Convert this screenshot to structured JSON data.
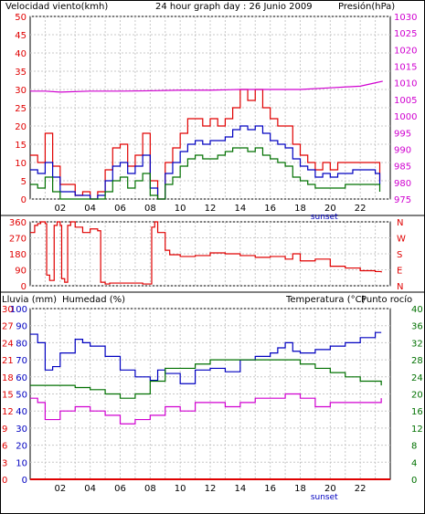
{
  "colors": {
    "red": "#e00000",
    "blue": "#0000c0",
    "green": "#007000",
    "magenta": "#d000d0",
    "grid": "#c8c8c8",
    "frame": "#000000"
  },
  "header": {
    "left": "Velocidad viento(kmh)",
    "center": "24 hour graph day : 26 Junio 2009",
    "right": "Presión(hPa)"
  },
  "bottom_header": {
    "rain": "Lluvia (mm)",
    "humidity": "Humedad (%)",
    "temperature": "Temperatura (°C)",
    "dewpoint": "Punto rocío"
  },
  "x_ticks": [
    "02",
    "04",
    "06",
    "08",
    "10",
    "12",
    "14",
    "16",
    "18",
    "20",
    "22"
  ],
  "sunset_label": "sunset",
  "chart_data": [
    {
      "type": "line",
      "id": "wind_pressure",
      "xlim": [
        0,
        24
      ],
      "left_axis": {
        "label": "Velocidad viento(kmh)",
        "ylim": [
          0,
          50
        ],
        "ticks": [
          0,
          5,
          10,
          15,
          20,
          25,
          30,
          35,
          40,
          45,
          50
        ]
      },
      "right_axis": {
        "label": "Presión(hPa)",
        "ylim": [
          975,
          1030
        ],
        "ticks": [
          975,
          980,
          985,
          990,
          995,
          1000,
          1005,
          1010,
          1015,
          1020,
          1025,
          1030
        ]
      },
      "series": [
        {
          "name": "wind_gust",
          "axis": "left",
          "x": [
            0,
            0.5,
            1,
            1.5,
            2,
            2.5,
            3,
            3.5,
            4,
            4.5,
            5,
            5.5,
            6,
            6.5,
            7,
            7.5,
            8,
            8.5,
            9,
            9.5,
            10,
            10.5,
            11,
            11.5,
            12,
            12.5,
            13,
            13.5,
            14,
            14.5,
            15,
            15.5,
            16,
            16.5,
            17,
            17.5,
            18,
            18.5,
            19,
            19.5,
            20,
            20.5,
            21,
            21.5,
            22,
            22.5,
            23,
            23.3
          ],
          "values": [
            12,
            10,
            18,
            9,
            4,
            4,
            1,
            2,
            0,
            2,
            8,
            14,
            15,
            9,
            12,
            18,
            5,
            0,
            10,
            14,
            18,
            22,
            22,
            20,
            22,
            20,
            22,
            25,
            30,
            27,
            30,
            25,
            22,
            20,
            20,
            15,
            12,
            10,
            8,
            10,
            8,
            10,
            10,
            10,
            10,
            10,
            10,
            5
          ]
        },
        {
          "name": "wind_avg",
          "axis": "left",
          "x": [
            0,
            0.5,
            1,
            1.5,
            2,
            2.5,
            3,
            3.5,
            4,
            4.5,
            5,
            5.5,
            6,
            6.5,
            7,
            7.5,
            8,
            8.5,
            9,
            9.5,
            10,
            10.5,
            11,
            11.5,
            12,
            12.5,
            13,
            13.5,
            14,
            14.5,
            15,
            15.5,
            16,
            16.5,
            17,
            17.5,
            18,
            18.5,
            19,
            19.5,
            20,
            20.5,
            21,
            21.5,
            22,
            22.5,
            23,
            23.3
          ],
          "values": [
            8,
            7,
            10,
            6,
            2,
            2,
            1,
            1,
            0,
            1,
            5,
            9,
            10,
            7,
            9,
            12,
            3,
            0,
            7,
            10,
            13,
            15,
            16,
            15,
            16,
            16,
            17,
            19,
            20,
            19,
            20,
            18,
            16,
            15,
            14,
            11,
            9,
            8,
            6,
            7,
            6,
            7,
            7,
            8,
            8,
            8,
            7,
            4
          ]
        },
        {
          "name": "wind_direction_low",
          "axis": "left",
          "x": [
            0,
            0.5,
            1,
            1.5,
            2,
            2.5,
            3,
            3.5,
            4,
            4.5,
            5,
            5.5,
            6,
            6.5,
            7,
            7.5,
            8,
            8.5,
            9,
            9.5,
            10,
            10.5,
            11,
            11.5,
            12,
            12.5,
            13,
            13.5,
            14,
            14.5,
            15,
            15.5,
            16,
            16.5,
            17,
            17.5,
            18,
            18.5,
            19,
            19.5,
            20,
            20.5,
            21,
            21.5,
            22,
            22.5,
            23,
            23.3
          ],
          "values": [
            4,
            3,
            6,
            2,
            0,
            0,
            0,
            0,
            0,
            0,
            2,
            5,
            6,
            3,
            5,
            7,
            1,
            0,
            4,
            6,
            9,
            11,
            12,
            11,
            11,
            12,
            13,
            14,
            14,
            13,
            14,
            12,
            11,
            10,
            9,
            6,
            5,
            4,
            3,
            3,
            3,
            3,
            4,
            4,
            4,
            4,
            4,
            2
          ]
        },
        {
          "name": "pressure",
          "axis": "right",
          "x": [
            0,
            1,
            2,
            4,
            6,
            8,
            10,
            12,
            14,
            16,
            18,
            20,
            22,
            23,
            23.5
          ],
          "values": [
            1007.5,
            1007.5,
            1007.2,
            1007.5,
            1007.5,
            1007.6,
            1007.8,
            1007.8,
            1008,
            1008,
            1008,
            1008.5,
            1009,
            1010,
            1010.5
          ]
        }
      ],
      "annotation": "sunset"
    },
    {
      "type": "line",
      "id": "wind_direction",
      "xlim": [
        0,
        24
      ],
      "left_axis": {
        "ylim": [
          0,
          360
        ],
        "ticks": [
          0,
          90,
          180,
          270,
          360
        ]
      },
      "right_axis_labels": [
        "N",
        "W",
        "S",
        "E",
        "N"
      ],
      "series": [
        {
          "name": "direction",
          "axis": "left",
          "x": [
            0,
            0.3,
            0.5,
            0.7,
            1,
            1.1,
            1.3,
            1.6,
            1.8,
            2,
            2.1,
            2.3,
            2.5,
            2.7,
            3,
            3.5,
            4,
            4.5,
            4.7,
            5,
            5.3,
            6,
            7,
            7.5,
            8,
            8.1,
            8.3,
            8.5,
            9,
            9.3,
            10,
            11,
            12,
            13,
            14,
            15,
            16,
            17,
            17.5,
            18,
            19,
            20,
            21,
            22,
            23,
            23.4
          ],
          "values": [
            300,
            340,
            350,
            360,
            350,
            60,
            30,
            340,
            360,
            340,
            40,
            20,
            340,
            360,
            330,
            300,
            320,
            310,
            20,
            10,
            15,
            15,
            15,
            10,
            10,
            330,
            360,
            300,
            200,
            175,
            165,
            170,
            185,
            180,
            170,
            160,
            165,
            150,
            180,
            140,
            150,
            110,
            100,
            85,
            80,
            75
          ]
        }
      ]
    },
    {
      "type": "line",
      "id": "rain_humidity_temperature",
      "xlim": [
        0,
        24
      ],
      "axes": {
        "rain": {
          "label": "Lluvia (mm)",
          "ylim": [
            0,
            30
          ],
          "ticks": [
            0,
            3,
            6,
            9,
            12,
            15,
            18,
            21,
            24,
            27,
            30
          ]
        },
        "humidity": {
          "label": "Humedad (%)",
          "ylim": [
            0,
            100
          ],
          "ticks": [
            0,
            10,
            20,
            30,
            40,
            50,
            60,
            70,
            80,
            90,
            100
          ]
        },
        "temperature": {
          "label": "Temperatura (°C)",
          "ylim": [
            0,
            40
          ],
          "ticks": [
            0,
            4,
            8,
            12,
            16,
            20,
            24,
            28,
            32,
            36,
            40
          ]
        }
      },
      "series": [
        {
          "name": "humidity",
          "axis": "humidity",
          "x": [
            0,
            0.5,
            1,
            1.5,
            2,
            3,
            3.5,
            4,
            5,
            6,
            7,
            8,
            8.5,
            9,
            10,
            11,
            12,
            13,
            14,
            15,
            16,
            16.5,
            17,
            17.5,
            18,
            19,
            20,
            21,
            22,
            23,
            23.4
          ],
          "values": [
            85,
            80,
            64,
            66,
            74,
            82,
            80,
            78,
            72,
            64,
            60,
            58,
            64,
            62,
            56,
            64,
            65,
            63,
            70,
            72,
            74,
            77,
            80,
            75,
            74,
            76,
            78,
            80,
            83,
            86,
            86
          ]
        },
        {
          "name": "temperature",
          "axis": "temperature",
          "x": [
            0,
            1,
            2,
            3,
            4,
            5,
            6,
            7,
            8,
            9,
            10,
            11,
            12,
            13,
            14,
            15,
            16,
            17,
            18,
            19,
            20,
            21,
            22,
            23,
            23.4
          ],
          "values": [
            22,
            22,
            22,
            21.5,
            21,
            20,
            19,
            20,
            23,
            26,
            26,
            27,
            28,
            28,
            28,
            28,
            28,
            28,
            27,
            26,
            25,
            24,
            23,
            23,
            22
          ]
        },
        {
          "name": "dewpoint",
          "axis": "temperature",
          "x": [
            0,
            0.5,
            1,
            1.5,
            2,
            3,
            4,
            5,
            6,
            7,
            8,
            9,
            10,
            11,
            12,
            13,
            14,
            15,
            16,
            17,
            18,
            19,
            20,
            21,
            22,
            23,
            23.4
          ],
          "values": [
            19,
            18,
            14,
            14,
            16,
            17,
            16,
            15,
            13,
            14,
            15,
            17,
            16,
            18,
            18,
            17,
            18,
            19,
            19,
            20,
            19,
            17,
            18,
            18,
            18,
            18,
            19
          ]
        },
        {
          "name": "rain",
          "axis": "rain",
          "x": [
            0,
            24
          ],
          "values": [
            0,
            0
          ]
        }
      ],
      "annotation": "sunset"
    }
  ]
}
